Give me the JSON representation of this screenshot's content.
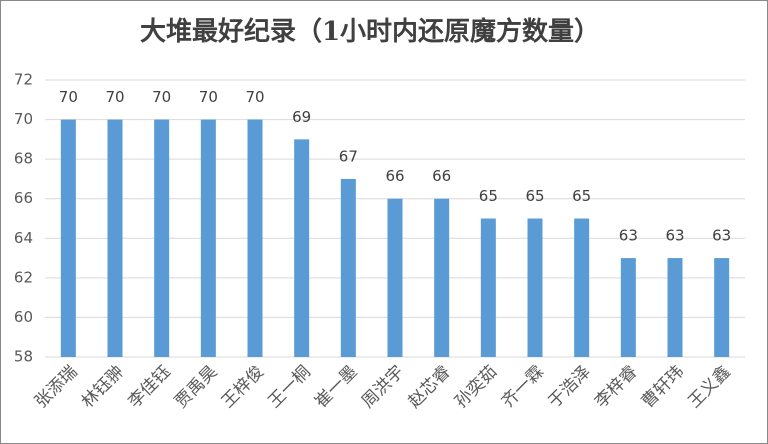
{
  "chart_data": {
    "type": "bar",
    "title": "大堆最好纪录（1小时内还原魔方数量）",
    "categories": [
      "张添瑞",
      "林钰翀",
      "李佳钰",
      "贾禹昊",
      "王梓俊",
      "王一桐",
      "崔一墨",
      "周洪宇",
      "赵芯睿",
      "孙奕茹",
      "齐一霖",
      "于浩泽",
      "李梓睿",
      "曹轩玮",
      "王义鑫"
    ],
    "values": [
      70,
      70,
      70,
      70,
      70,
      69,
      67,
      66,
      66,
      65,
      65,
      65,
      63,
      63,
      63
    ],
    "color": "#5b9bd5",
    "ylim": [
      58,
      72
    ],
    "yticks": [
      58,
      60,
      62,
      64,
      66,
      68,
      70,
      72
    ],
    "grid": true
  }
}
